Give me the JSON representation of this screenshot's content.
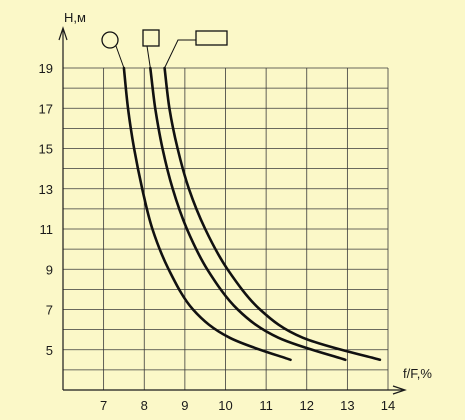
{
  "chart_data": {
    "type": "line",
    "xlabel": "f/F,%",
    "ylabel": "H,м",
    "xlim": [
      6,
      14
    ],
    "ylim": [
      3,
      19
    ],
    "x_ticks": [
      7,
      8,
      9,
      10,
      11,
      12,
      13,
      14
    ],
    "y_ticks": [
      5,
      7,
      9,
      11,
      13,
      15,
      17,
      19
    ],
    "grid": true,
    "series": [
      {
        "symbol": "circle",
        "points": [
          [
            7.5,
            19
          ],
          [
            7.6,
            17
          ],
          [
            7.75,
            15
          ],
          [
            7.95,
            13
          ],
          [
            8.2,
            11
          ],
          [
            8.6,
            9
          ],
          [
            9.2,
            7
          ],
          [
            10.1,
            5.6
          ],
          [
            11.6,
            4.5
          ]
        ]
      },
      {
        "symbol": "square",
        "points": [
          [
            8.15,
            19
          ],
          [
            8.27,
            17
          ],
          [
            8.45,
            15
          ],
          [
            8.7,
            13
          ],
          [
            9.05,
            11
          ],
          [
            9.55,
            9
          ],
          [
            10.3,
            7
          ],
          [
            11.3,
            5.6
          ],
          [
            12.95,
            4.5
          ]
        ]
      },
      {
        "symbol": "rectangle",
        "points": [
          [
            8.5,
            19
          ],
          [
            8.62,
            17
          ],
          [
            8.82,
            15
          ],
          [
            9.1,
            13
          ],
          [
            9.5,
            11
          ],
          [
            10.05,
            9
          ],
          [
            10.85,
            7
          ],
          [
            11.9,
            5.6
          ],
          [
            13.8,
            4.5
          ]
        ]
      }
    ]
  }
}
